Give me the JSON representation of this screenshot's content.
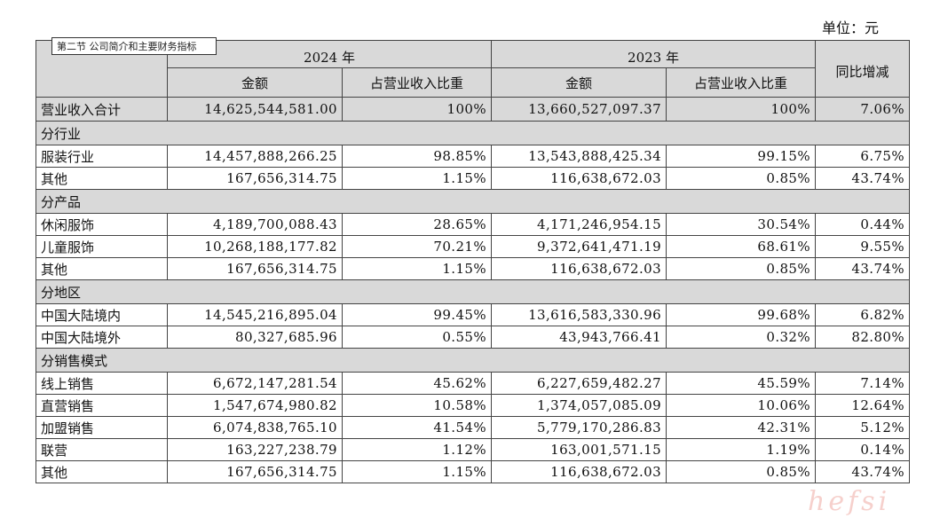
{
  "unit_label": "单位：元",
  "section_tag": "第二节 公司简介和主要财务指标",
  "header": {
    "year_2024": "2024 年",
    "year_2023": "2023 年",
    "yoy": "同比增减",
    "amount": "金额",
    "share": "占营业收入比重"
  },
  "total": {
    "label": "营业收入合计",
    "a24": "14,625,544,581.00",
    "p24": "100%",
    "a23": "13,660,527,097.37",
    "p23": "100%",
    "yoy": "7.06%"
  },
  "sections": [
    {
      "title": "分行业",
      "rows": [
        {
          "label": "服装行业",
          "a24": "14,457,888,266.25",
          "p24": "98.85%",
          "a23": "13,543,888,425.34",
          "p23": "99.15%",
          "yoy": "6.75%"
        },
        {
          "label": "其他",
          "a24": "167,656,314.75",
          "p24": "1.15%",
          "a23": "116,638,672.03",
          "p23": "0.85%",
          "yoy": "43.74%"
        }
      ]
    },
    {
      "title": "分产品",
      "rows": [
        {
          "label": "休闲服饰",
          "a24": "4,189,700,088.43",
          "p24": "28.65%",
          "a23": "4,171,246,954.15",
          "p23": "30.54%",
          "yoy": "0.44%"
        },
        {
          "label": "儿童服饰",
          "a24": "10,268,188,177.82",
          "p24": "70.21%",
          "a23": "9,372,641,471.19",
          "p23": "68.61%",
          "yoy": "9.55%"
        },
        {
          "label": "其他",
          "a24": "167,656,314.75",
          "p24": "1.15%",
          "a23": "116,638,672.03",
          "p23": "0.85%",
          "yoy": "43.74%"
        }
      ]
    },
    {
      "title": "分地区",
      "rows": [
        {
          "label": "中国大陆境内",
          "a24": "14,545,216,895.04",
          "p24": "99.45%",
          "a23": "13,616,583,330.96",
          "p23": "99.68%",
          "yoy": "6.82%"
        },
        {
          "label": "中国大陆境外",
          "a24": "80,327,685.96",
          "p24": "0.55%",
          "a23": "43,943,766.41",
          "p23": "0.32%",
          "yoy": "82.80%"
        }
      ]
    },
    {
      "title": "分销售模式",
      "rows": [
        {
          "label": "线上销售",
          "a24": "6,672,147,281.54",
          "p24": "45.62%",
          "a23": "6,227,659,482.27",
          "p23": "45.59%",
          "yoy": "7.14%"
        },
        {
          "label": "直营销售",
          "a24": "1,547,674,980.82",
          "p24": "10.58%",
          "a23": "1,374,057,085.09",
          "p23": "10.06%",
          "yoy": "12.64%"
        },
        {
          "label": "加盟销售",
          "a24": "6,074,838,765.10",
          "p24": "41.54%",
          "a23": "5,779,170,286.83",
          "p23": "42.31%",
          "yoy": "5.12%"
        },
        {
          "label": "联营",
          "a24": "163,227,238.79",
          "p24": "1.12%",
          "a23": "163,001,571.15",
          "p23": "1.19%",
          "yoy": "0.14%"
        },
        {
          "label": "其他",
          "a24": "167,656,314.75",
          "p24": "1.15%",
          "a23": "116,638,672.03",
          "p23": "0.85%",
          "yoy": "43.74%"
        }
      ]
    }
  ],
  "watermark": "hefsi"
}
